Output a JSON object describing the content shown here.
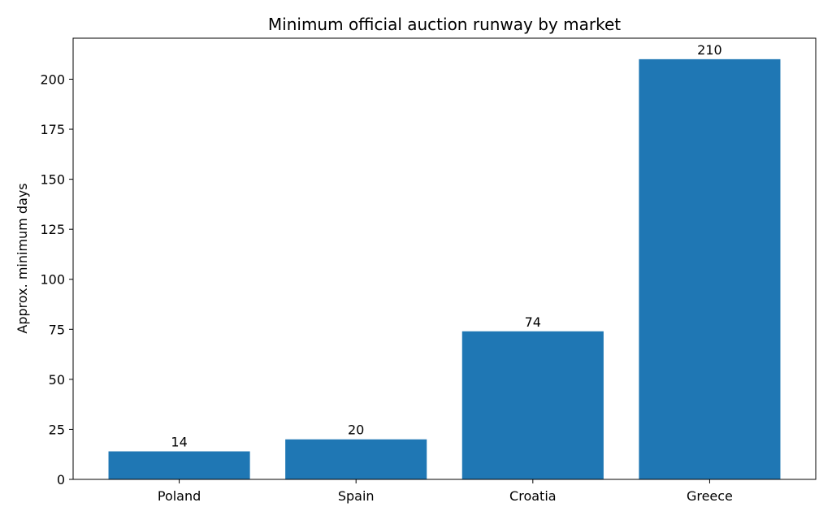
{
  "chart_data": {
    "type": "bar",
    "title": "Minimum official auction runway by market",
    "xlabel": "",
    "ylabel": "Approx. minimum days",
    "categories": [
      "Poland",
      "Spain",
      "Croatia",
      "Greece"
    ],
    "values": [
      14,
      20,
      74,
      210
    ],
    "data_labels": [
      "14",
      "20",
      "74",
      "210"
    ],
    "ylim": [
      0,
      220.5
    ],
    "yticks": [
      0,
      25,
      50,
      75,
      100,
      125,
      150,
      175,
      200
    ],
    "ytick_labels": [
      "0",
      "25",
      "50",
      "75",
      "100",
      "125",
      "150",
      "175",
      "200"
    ],
    "bar_color": "#1f77b4",
    "grid": false,
    "legend": "none"
  }
}
